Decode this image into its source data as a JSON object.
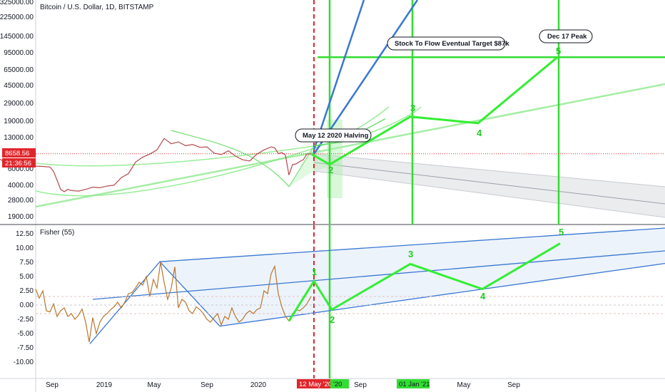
{
  "chart_data": [
    {
      "type": "line",
      "title": "Bitcoin / U.S. Dollar, 1D, BITSTAMP",
      "y_scale": "log",
      "ylim": [
        1600,
        325000
      ],
      "yticks": [
        "325000.00",
        "225000.00",
        "145000.00",
        "95000.00",
        "65000.00",
        "45000.00",
        "29000.00",
        "19000.00",
        "13000.00",
        "6000.00",
        "4000.00",
        "2800.00",
        "1900.00"
      ],
      "price_badge": "8658.56",
      "time_badge": "21:36:56",
      "price_line_value": 8658.56,
      "series": [
        {
          "values": [
            [
              0,
              7600
            ],
            [
              10,
              6900
            ],
            [
              20,
              6800
            ],
            [
              30,
              6550
            ],
            [
              40,
              6500
            ],
            [
              50,
              6450
            ],
            [
              60,
              6400
            ],
            [
              70,
              6300
            ],
            [
              75,
              5700
            ],
            [
              80,
              4600
            ],
            [
              85,
              3700
            ],
            [
              90,
              3500
            ],
            [
              95,
              3700
            ],
            [
              100,
              3600
            ],
            [
              110,
              3550
            ],
            [
              120,
              3700
            ],
            [
              130,
              3900
            ],
            [
              140,
              3850
            ],
            [
              150,
              4000
            ],
            [
              160,
              4100
            ],
            [
              170,
              4900
            ],
            [
              180,
              5400
            ],
            [
              190,
              7100
            ],
            [
              200,
              8000
            ],
            [
              210,
              8600
            ],
            [
              220,
              9500
            ],
            [
              230,
              12500
            ],
            [
              240,
              11000
            ],
            [
              250,
              11500
            ],
            [
              260,
              10500
            ],
            [
              270,
              10800
            ],
            [
              280,
              10100
            ],
            [
              290,
              10200
            ],
            [
              300,
              8800
            ],
            [
              310,
              8500
            ],
            [
              320,
              9300
            ],
            [
              330,
              8200
            ],
            [
              340,
              7500
            ],
            [
              350,
              7300
            ],
            [
              360,
              8600
            ],
            [
              370,
              9500
            ],
            [
              380,
              10200
            ],
            [
              385,
              10000
            ],
            [
              390,
              8700
            ],
            [
              395,
              8900
            ],
            [
              400,
              8400
            ],
            [
              405,
              5200
            ],
            [
              410,
              6700
            ],
            [
              415,
              6800
            ],
            [
              420,
              7200
            ],
            [
              425,
              7500
            ],
            [
              430,
              8600
            ],
            [
              436,
              8660
            ]
          ]
        },
        {
          "values": [
            [
              436,
              8660
            ],
            [
              462,
              6700
            ],
            [
              575,
              21000
            ],
            [
              670,
              18000
            ],
            [
              782,
              88000
            ]
          ]
        },
        {
          "values": [
            [
              440,
              10500
            ],
            [
              480,
              11500
            ],
            [
              540,
              20000
            ]
          ]
        }
      ],
      "labels": [
        "2",
        "3",
        "4",
        "5"
      ],
      "annotations": [
        "May 12 2020 Halving",
        "Stock To Flow Eventual Target $87k",
        "Dec 17 Peak"
      ],
      "horizontal_level": 87000
    },
    {
      "type": "line",
      "title": "Fisher (55)",
      "ylim": [
        -12.5,
        14
      ],
      "yticks": [
        "12.50",
        "10.00",
        "7.50",
        "5.00",
        "2.50",
        "0.00",
        "-2.50",
        "-5.00",
        "-7.50",
        "-10.00"
      ],
      "series": [
        {
          "values": [
            [
              50,
              2.8
            ],
            [
              55,
              1.2
            ],
            [
              60,
              2.5
            ],
            [
              65,
              -1.0
            ],
            [
              70,
              -1.2
            ],
            [
              75,
              0.2
            ],
            [
              80,
              -2.0
            ],
            [
              85,
              -1.0
            ],
            [
              90,
              -0.5
            ],
            [
              95,
              -2.0
            ],
            [
              100,
              -1.5
            ],
            [
              105,
              -2.5
            ],
            [
              110,
              -1.8
            ],
            [
              115,
              -0.7
            ],
            [
              120,
              -3.0
            ],
            [
              125,
              -6.5
            ],
            [
              130,
              -2.2
            ],
            [
              135,
              -5.0
            ],
            [
              140,
              -3.0
            ],
            [
              145,
              -2.0
            ],
            [
              150,
              -1.5
            ],
            [
              155,
              -0.8
            ],
            [
              160,
              -0.3
            ],
            [
              165,
              0.5
            ],
            [
              170,
              -0.5
            ],
            [
              175,
              0.5
            ],
            [
              180,
              2.0
            ],
            [
              185,
              2.2
            ],
            [
              190,
              3.0
            ],
            [
              195,
              4.0
            ],
            [
              200,
              3.5
            ],
            [
              205,
              5.0
            ],
            [
              210,
              1.5
            ],
            [
              215,
              4.5
            ],
            [
              220,
              3.0
            ],
            [
              225,
              7.5
            ],
            [
              230,
              4.0
            ],
            [
              235,
              1.0
            ],
            [
              240,
              3.0
            ],
            [
              245,
              6.7
            ],
            [
              250,
              -0.5
            ],
            [
              255,
              1.0
            ],
            [
              260,
              0.5
            ],
            [
              265,
              -1.0
            ],
            [
              270,
              -1.5
            ],
            [
              275,
              -0.3
            ],
            [
              280,
              -0.8
            ],
            [
              285,
              -1.5
            ],
            [
              290,
              -2.5
            ],
            [
              295,
              -3.0
            ],
            [
              300,
              -2.2
            ],
            [
              305,
              -1.5
            ],
            [
              310,
              -3.5
            ],
            [
              315,
              -2.0
            ],
            [
              320,
              -2.5
            ],
            [
              325,
              -0.5
            ],
            [
              330,
              -2.0
            ],
            [
              335,
              -3.0
            ],
            [
              340,
              -2.5
            ],
            [
              345,
              -1.5
            ],
            [
              350,
              -1.0
            ],
            [
              355,
              -1.5
            ],
            [
              360,
              -0.8
            ],
            [
              365,
              -0.5
            ],
            [
              370,
              2.5
            ],
            [
              375,
              2.0
            ],
            [
              380,
              5.5
            ],
            [
              385,
              6.8
            ],
            [
              390,
              2.0
            ],
            [
              395,
              -0.3
            ],
            [
              400,
              -2.0
            ],
            [
              405,
              -2.8
            ],
            [
              410,
              -1.5
            ],
            [
              415,
              -0.8
            ],
            [
              420,
              -1.0
            ],
            [
              425,
              -0.5
            ],
            [
              430,
              0.2
            ],
            [
              436,
              1.5
            ]
          ]
        },
        {
          "values": [
            [
              405,
              -2.8
            ],
            [
              440,
              4.2
            ],
            [
              465,
              -0.8
            ],
            [
              575,
              7.2
            ],
            [
              676,
              2.8
            ],
            [
              785,
              10.8
            ]
          ]
        }
      ],
      "labels": [
        "1",
        "2",
        "3",
        "4",
        "5"
      ]
    }
  ],
  "x_axis": {
    "labels": [
      "Sep",
      "2019",
      "May",
      "Sep",
      "2020",
      "May",
      "Sep",
      "May",
      "Sep"
    ],
    "badges": [
      "12 May '20",
      "'20",
      "01 Jan '21"
    ]
  }
}
